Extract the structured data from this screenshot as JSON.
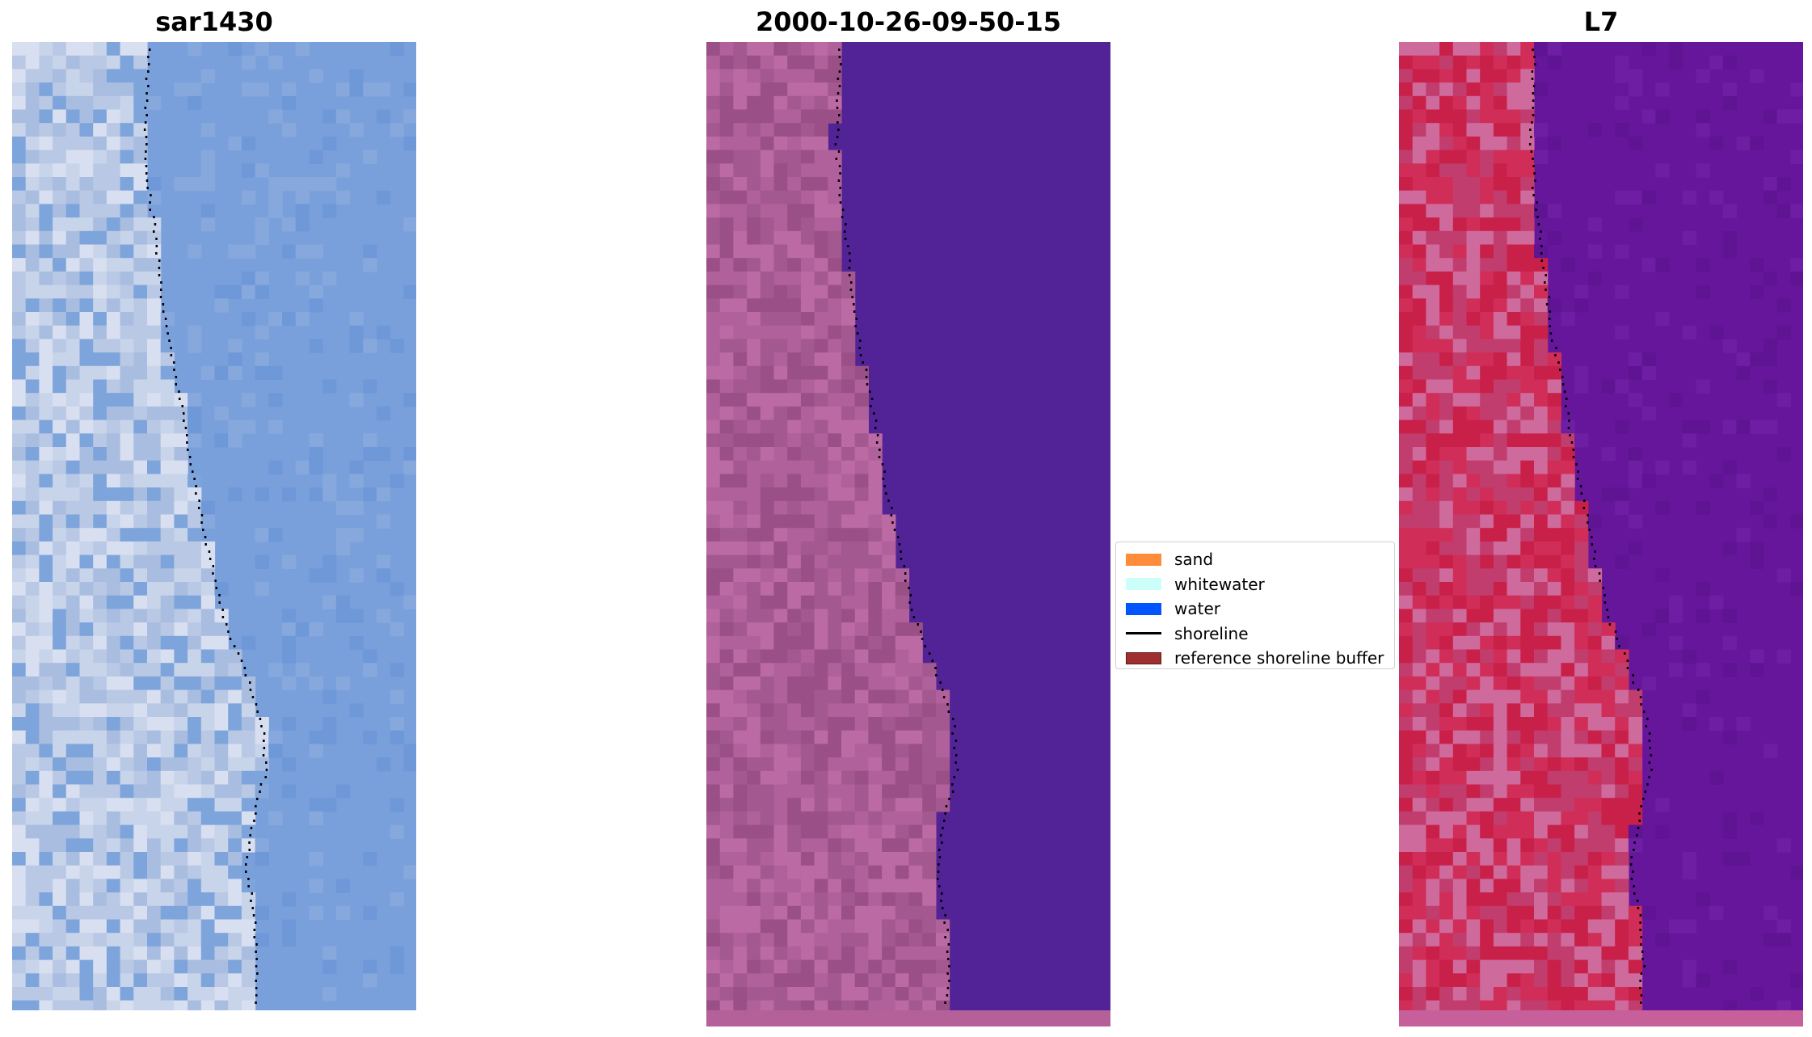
{
  "panels": [
    {
      "title": "sar1430",
      "palette": [
        "#c8d4ea",
        "#b9c8e4",
        "#d8dff0",
        "#a9bde0",
        "#7ea4dc"
      ],
      "water": "#7aa0dc"
    },
    {
      "title": "2000-10-26-09-50-15",
      "palette": [
        "#a3588f",
        "#b0609a",
        "#9a4f87",
        "#bb6aa3"
      ],
      "water": "#522396"
    },
    {
      "title": "L7",
      "palette": [
        "#c9204a",
        "#d02e58",
        "#c13d6e",
        "#cf6a9c"
      ],
      "water": "#66169b"
    }
  ],
  "legend": {
    "items": [
      {
        "label": "sand",
        "color": "#ff8c3a",
        "kind": "patch"
      },
      {
        "label": "whitewater",
        "color": "#ccfffa",
        "kind": "patch"
      },
      {
        "label": "water",
        "color": "#0055ff",
        "kind": "patch"
      },
      {
        "label": "shoreline",
        "color": "#000000",
        "kind": "line"
      },
      {
        "label": "reference shoreline buffer",
        "color": "#a03030",
        "kind": "patch"
      }
    ]
  }
}
